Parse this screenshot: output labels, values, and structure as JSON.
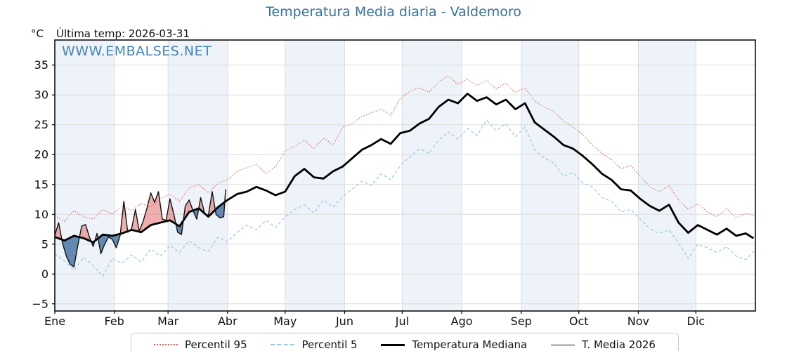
{
  "header": {
    "title": "Temperatura Media diaria - Valdemoro",
    "unit": "°C",
    "last_temp": "Última temp: 2026-03-31",
    "watermark": "WWW.EMBALSES.NET"
  },
  "colors": {
    "title_blue": "#34739f",
    "watermark_blue": "#3b7eb3",
    "p95_red": "#e06060",
    "p5_blue": "#9ecae1",
    "median_black": "#000000",
    "t2026_black": "#111111",
    "fill_above": "rgba(224,96,96,0.5)",
    "fill_below": "rgba(62,110,160,0.8)",
    "month_band": "#edf3f9",
    "grid": "#dcdcdc",
    "spine": "#000000"
  },
  "chart_data": {
    "type": "line",
    "title": "Temperatura Media diaria - Valdemoro",
    "ylabel": "°C",
    "annotation": "Última temp: 2026-03-31",
    "grid": true,
    "legend_position": "bottom",
    "x_axis": {
      "months": [
        "Ene",
        "Feb",
        "Mar",
        "Abr",
        "May",
        "Jun",
        "Jul",
        "Ago",
        "Sep",
        "Oct",
        "Nov",
        "Dic"
      ],
      "month_start_day": [
        0,
        31,
        59,
        90,
        120,
        151,
        181,
        212,
        243,
        273,
        304,
        334
      ],
      "days_in_year": 365,
      "shaded_months": [
        0,
        2,
        4,
        6,
        8,
        10
      ]
    },
    "y_axis": {
      "ticks": [
        -5,
        0,
        5,
        10,
        15,
        20,
        25,
        30,
        35
      ],
      "min": -6.2,
      "max": 39.2
    },
    "sample_days": [
      0,
      5,
      10,
      15,
      20,
      25,
      30,
      35,
      40,
      45,
      50,
      55,
      60,
      65,
      70,
      75,
      80,
      85,
      90,
      95,
      100,
      105,
      110,
      115,
      120,
      125,
      130,
      135,
      140,
      145,
      150,
      155,
      160,
      165,
      170,
      175,
      180,
      185,
      190,
      195,
      200,
      205,
      210,
      215,
      220,
      225,
      230,
      235,
      240,
      245,
      250,
      255,
      260,
      265,
      270,
      275,
      280,
      285,
      290,
      295,
      300,
      305,
      310,
      315,
      320,
      325,
      330,
      335,
      340,
      345,
      350,
      355,
      360,
      364
    ],
    "series": [
      {
        "name": "Percentil 95",
        "style": "dotted",
        "color": "#e06060",
        "width": 1.2,
        "days_key": "sample_days",
        "values": [
          9.8,
          8.8,
          10.6,
          9.6,
          9.2,
          10.8,
          10.0,
          11.4,
          10.6,
          11.8,
          11.2,
          12.6,
          13.4,
          12.2,
          14.4,
          15.0,
          13.6,
          15.2,
          15.8,
          17.2,
          17.8,
          18.4,
          16.8,
          18.0,
          20.6,
          21.4,
          22.4,
          21.0,
          22.8,
          21.6,
          24.6,
          25.2,
          26.4,
          27.0,
          27.6,
          26.6,
          29.4,
          30.6,
          31.2,
          30.4,
          32.2,
          33.2,
          31.8,
          32.6,
          31.6,
          32.4,
          31.0,
          32.0,
          30.4,
          31.2,
          29.0,
          28.0,
          27.2,
          25.6,
          24.6,
          23.4,
          21.6,
          20.2,
          19.2,
          17.6,
          18.2,
          16.4,
          14.6,
          13.8,
          14.8,
          12.4,
          10.8,
          11.8,
          10.4,
          9.6,
          11.0,
          9.4,
          10.2,
          9.8
        ]
      },
      {
        "name": "Percentil 5",
        "style": "dashed",
        "color": "#9ecae1",
        "width": 1.2,
        "days_key": "sample_days",
        "values": [
          3.4,
          2.2,
          0.6,
          2.8,
          1.4,
          -0.4,
          2.6,
          1.8,
          3.2,
          2.0,
          4.2,
          3.0,
          4.8,
          3.6,
          5.6,
          4.4,
          3.8,
          6.2,
          5.4,
          7.0,
          8.2,
          7.4,
          9.0,
          7.8,
          9.6,
          10.8,
          11.6,
          10.2,
          12.4,
          11.2,
          13.0,
          14.2,
          15.6,
          14.8,
          16.8,
          15.8,
          18.2,
          19.6,
          21.0,
          20.2,
          22.4,
          23.8,
          22.6,
          24.4,
          23.2,
          25.8,
          24.0,
          25.2,
          23.0,
          24.6,
          20.8,
          19.4,
          18.6,
          16.4,
          17.0,
          15.2,
          14.6,
          12.8,
          12.2,
          10.4,
          10.8,
          9.2,
          7.6,
          6.8,
          7.4,
          5.2,
          2.6,
          5.0,
          4.4,
          3.6,
          4.6,
          3.0,
          2.4,
          3.8
        ]
      },
      {
        "name": "Temperatura Mediana",
        "style": "solid",
        "color": "#000000",
        "width": 2.8,
        "days_key": "sample_days",
        "values": [
          6.2,
          5.6,
          6.4,
          6.0,
          5.3,
          6.6,
          6.4,
          6.8,
          7.4,
          7.0,
          8.2,
          8.6,
          9.0,
          8.0,
          10.4,
          11.0,
          9.6,
          11.2,
          12.4,
          13.4,
          13.8,
          14.6,
          14.0,
          13.2,
          13.8,
          16.4,
          17.6,
          16.2,
          16.0,
          17.2,
          18.0,
          19.4,
          20.8,
          21.6,
          22.6,
          21.8,
          23.6,
          24.0,
          25.2,
          26.0,
          28.0,
          29.2,
          28.6,
          30.2,
          29.0,
          29.6,
          28.4,
          29.2,
          27.6,
          28.6,
          25.4,
          24.2,
          23.0,
          21.6,
          21.0,
          19.8,
          18.4,
          16.8,
          15.8,
          14.2,
          14.0,
          12.6,
          11.4,
          10.6,
          11.6,
          8.6,
          6.9,
          8.2,
          7.4,
          6.6,
          7.6,
          6.4,
          6.8,
          6.0
        ]
      },
      {
        "name": "T. Media 2026",
        "style": "solid",
        "color": "#111111",
        "width": 1.4,
        "days": [
          0,
          2,
          4,
          6,
          8,
          10,
          12,
          14,
          16,
          18,
          20,
          22,
          24,
          26,
          28,
          30,
          32,
          34,
          36,
          38,
          40,
          42,
          44,
          46,
          48,
          50,
          52,
          54,
          56,
          58,
          60,
          62,
          64,
          66,
          68,
          70,
          72,
          74,
          76,
          78,
          80,
          82,
          84,
          86,
          88,
          89
        ],
        "values": [
          6.5,
          8.6,
          5.2,
          3.0,
          1.6,
          1.2,
          4.8,
          8.0,
          8.3,
          6.2,
          4.6,
          6.8,
          3.4,
          5.0,
          6.2,
          5.8,
          4.4,
          6.4,
          12.2,
          7.0,
          7.6,
          10.8,
          7.2,
          8.8,
          11.0,
          13.6,
          12.0,
          13.8,
          9.2,
          9.0,
          12.6,
          10.0,
          7.0,
          6.6,
          11.4,
          12.4,
          10.6,
          9.2,
          12.8,
          10.2,
          9.8,
          13.8,
          10.0,
          9.4,
          9.6,
          14.2
        ]
      }
    ],
    "fill_between": {
      "upper_series": "T. Media 2026",
      "lower_series": "Temperatura Mediana",
      "above_color": "rgba(224,96,96,0.5)",
      "below_color": "rgba(62,110,160,0.8)",
      "day_range": [
        0,
        89
      ]
    },
    "legend": [
      {
        "label": "Percentil 95",
        "style": "dotted",
        "color": "#e06060"
      },
      {
        "label": "Percentil 5",
        "style": "dashed",
        "color": "#9ecae1"
      },
      {
        "label": "Temperatura Mediana",
        "style": "thick",
        "color": "#000000"
      },
      {
        "label": "T. Media 2026",
        "style": "thin",
        "color": "#111111"
      }
    ]
  }
}
